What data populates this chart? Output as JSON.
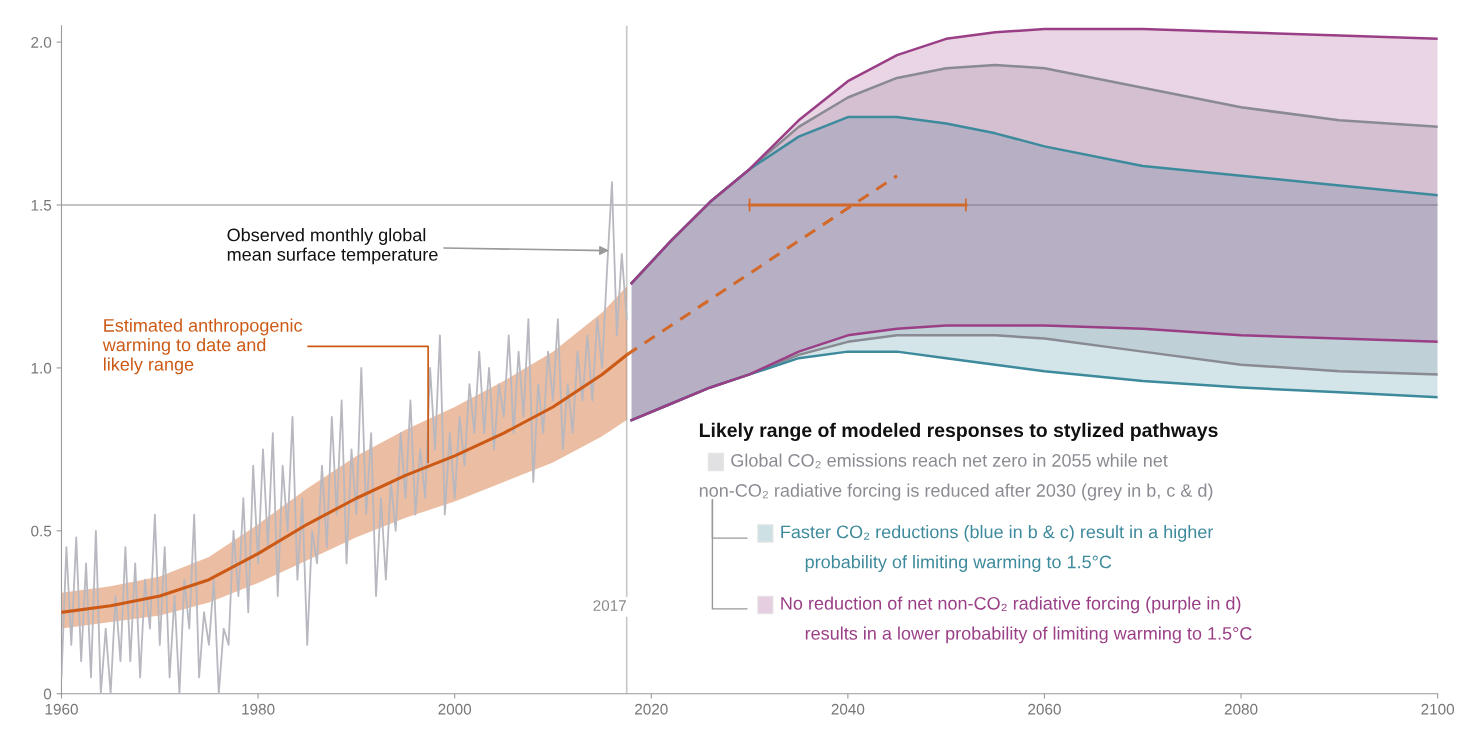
{
  "chart_data": {
    "type": "line",
    "xlim": [
      1960,
      2100
    ],
    "ylim": [
      0,
      2.05
    ],
    "xticks": [
      1960,
      1980,
      2000,
      2020,
      2040,
      2060,
      2080,
      2100
    ],
    "yticks": [
      0,
      0.5,
      {
        "value": 1.0,
        "label": "1.0"
      },
      1.5,
      {
        "value": 2.0,
        "label": "2.0"
      }
    ],
    "grid": false,
    "legend": "bottom right",
    "legend_title": "Likely range of modeled responses to stylized pathways",
    "series": [
      {
        "color": "#b8b8c0",
        "x": [
          1960,
          1960.5,
          1961,
          1961.5,
          1962,
          1962.5,
          1963,
          1963.5,
          1964,
          1964.5,
          1965,
          1965.5,
          1966,
          1966.5,
          1967,
          1967.5,
          1968,
          1968.5,
          1969,
          1969.5,
          1970,
          1970.5,
          1971,
          1971.5,
          1972,
          1972.5,
          1973,
          1973.5,
          1974,
          1974.5,
          1975,
          1975.5,
          1976,
          1976.5,
          1977,
          1977.5,
          1978,
          1978.5,
          1979,
          1979.5,
          1980,
          1980.5,
          1981,
          1981.5,
          1982,
          1982.5,
          1983,
          1983.5,
          1984,
          1984.5,
          1985,
          1985.5,
          1986,
          1986.5,
          1987,
          1987.5,
          1988,
          1988.5,
          1989,
          1989.5,
          1990,
          1990.5,
          1991,
          1991.5,
          1992,
          1992.5,
          1993,
          1993.5,
          1994,
          1994.5,
          1995,
          1995.5,
          1996,
          1996.5,
          1997,
          1997.5,
          1998,
          1998.5,
          1999,
          1999.5,
          2000,
          2000.5,
          2001,
          2001.5,
          2002,
          2002.5,
          2003,
          2003.5,
          2004,
          2004.5,
          2005,
          2005.5,
          2006,
          2006.5,
          2007,
          2007.5,
          2008,
          2008.5,
          2009,
          2009.5,
          2010,
          2010.5,
          2011,
          2011.5,
          2012,
          2012.5,
          2013,
          2013.5,
          2014,
          2014.5,
          2015,
          2015.5,
          2016,
          2016.5,
          2017,
          2017.5
        ],
        "values": [
          0.05,
          0.45,
          0.15,
          0.48,
          0.1,
          0.4,
          0.05,
          0.5,
          0.0,
          0.2,
          0.0,
          0.3,
          0.1,
          0.45,
          0.1,
          0.4,
          0.05,
          0.35,
          0.2,
          0.55,
          0.15,
          0.45,
          0.05,
          0.3,
          0.0,
          0.35,
          0.2,
          0.55,
          0.05,
          0.25,
          0.15,
          0.35,
          0.0,
          0.2,
          0.15,
          0.5,
          0.3,
          0.6,
          0.25,
          0.7,
          0.4,
          0.75,
          0.45,
          0.8,
          0.3,
          0.7,
          0.5,
          0.85,
          0.35,
          0.6,
          0.15,
          0.5,
          0.4,
          0.7,
          0.45,
          0.85,
          0.55,
          0.9,
          0.4,
          0.75,
          0.55,
          1.0,
          0.55,
          0.8,
          0.3,
          0.6,
          0.35,
          0.65,
          0.5,
          0.8,
          0.6,
          0.9,
          0.55,
          0.75,
          0.6,
          1.0,
          0.75,
          1.1,
          0.55,
          0.8,
          0.6,
          0.85,
          0.7,
          0.95,
          0.8,
          1.05,
          0.8,
          1.0,
          0.75,
          0.95,
          0.85,
          1.1,
          0.8,
          1.05,
          0.85,
          1.15,
          0.65,
          0.95,
          0.8,
          1.05,
          0.9,
          1.15,
          0.75,
          0.95,
          0.8,
          1.05,
          0.9,
          1.1,
          0.9,
          1.15,
          1.0,
          1.3,
          1.57,
          1.1,
          1.35,
          1.15
        ]
      },
      {
        "color": "#cc5a16",
        "x": [
          1960,
          1965,
          1970,
          1975,
          1980,
          1985,
          1990,
          1995,
          2000,
          2005,
          2010,
          2015,
          2017.5
        ],
        "values": [
          0.25,
          0.27,
          0.3,
          0.35,
          0.43,
          0.52,
          0.6,
          0.67,
          0.73,
          0.8,
          0.88,
          0.98,
          1.04
        ],
        "lower": [
          0.2,
          0.22,
          0.24,
          0.28,
          0.34,
          0.41,
          0.48,
          0.54,
          0.59,
          0.65,
          0.71,
          0.79,
          0.84
        ],
        "upper": [
          0.31,
          0.33,
          0.36,
          0.42,
          0.52,
          0.63,
          0.73,
          0.81,
          0.88,
          0.96,
          1.05,
          1.17,
          1.25
        ]
      },
      {
        "color": "#8a8a92",
        "x": [
          2018,
          2022,
          2026,
          2030,
          2035,
          2040,
          2045,
          2050,
          2055,
          2060,
          2070,
          2080,
          2090,
          2100
        ],
        "values": [
          0.84,
          0.89,
          0.94,
          0.98,
          1.04,
          1.08,
          1.1,
          1.1,
          1.1,
          1.09,
          1.05,
          1.01,
          0.99,
          0.98
        ]
      },
      {
        "type": "area",
        "name": "Global CO₂ emissions reach net zero in 2055 while net\nnon-CO₂ radiative forcing is reduced after 2030 (grey in b, c & d)",
        "color": "#8a8a92",
        "x": [
          2018,
          2022,
          2026,
          2030,
          2035,
          2040,
          2045,
          2050,
          2055,
          2060,
          2070,
          2080,
          2090,
          2100
        ],
        "values": [
          1.26,
          1.39,
          1.51,
          1.61,
          1.74,
          1.83,
          1.89,
          1.92,
          1.93,
          1.92,
          1.86,
          1.8,
          1.76,
          1.74
        ]
      },
      {
        "color": "#3d8a9c",
        "x": [
          2018,
          2022,
          2026,
          2030,
          2035,
          2040,
          2045,
          2050,
          2055,
          2060,
          2070,
          2080,
          2090,
          2100
        ],
        "values": [
          0.84,
          0.89,
          0.94,
          0.98,
          1.03,
          1.05,
          1.05,
          1.03,
          1.01,
          0.99,
          0.96,
          0.94,
          0.925,
          0.91
        ]
      },
      {
        "type": "area",
        "name": "Faster CO₂ reductions (blue in b & c) result in a higher\nprobability of limiting warming to 1.5°C",
        "color": "#3d8a9c",
        "x": [
          2018,
          2022,
          2026,
          2030,
          2035,
          2040,
          2045,
          2050,
          2055,
          2060,
          2070,
          2080,
          2090,
          2100
        ],
        "values": [
          1.26,
          1.39,
          1.51,
          1.61,
          1.71,
          1.77,
          1.77,
          1.75,
          1.72,
          1.68,
          1.62,
          1.59,
          1.56,
          1.53
        ]
      },
      {
        "color": "#9a3f86",
        "x": [
          2018,
          2022,
          2026,
          2030,
          2035,
          2040,
          2045,
          2050,
          2055,
          2060,
          2070,
          2080,
          2090,
          2100
        ],
        "values": [
          0.84,
          0.89,
          0.94,
          0.98,
          1.05,
          1.1,
          1.12,
          1.13,
          1.13,
          1.13,
          1.12,
          1.1,
          1.09,
          1.08
        ]
      },
      {
        "type": "area",
        "name": "No reduction of net non-CO₂ radiative forcing (purple in d)\nresults in a lower probability of limiting warming to 1.5°C",
        "color": "#9a3f86",
        "x": [
          2018,
          2022,
          2026,
          2030,
          2035,
          2040,
          2045,
          2050,
          2055,
          2060,
          2070,
          2080,
          2090,
          2100
        ],
        "values": [
          1.26,
          1.39,
          1.51,
          1.61,
          1.76,
          1.88,
          1.96,
          2.01,
          2.03,
          2.04,
          2.04,
          2.03,
          2.02,
          2.01
        ]
      },
      {
        "color": "#d2692a",
        "line_style": "dashed",
        "x": [
          2017.5,
          2045
        ],
        "values": [
          1.04,
          1.59
        ]
      },
      {
        "color": "#d2692a",
        "x": [
          2030,
          2052
        ],
        "values": [
          1.5,
          1.5
        ],
        "errors": [
          0.02,
          0.02
        ]
      }
    ],
    "ref_lines": [
      {
        "axis": "y",
        "value": 1.5,
        "color": "#b0b0b0"
      },
      {
        "axis": "x",
        "value": 2017.5,
        "label": "2017",
        "color": "#c8c8c8"
      }
    ],
    "annotations": [
      {
        "text": "Observed monthly global\nmean surface temperature",
        "x": 2015.7,
        "y": 1.36
      },
      {
        "text": "Estimated anthropogenic\nwarming to date and\nlikely range",
        "x": 1997.3,
        "y": 0.71
      }
    ]
  }
}
